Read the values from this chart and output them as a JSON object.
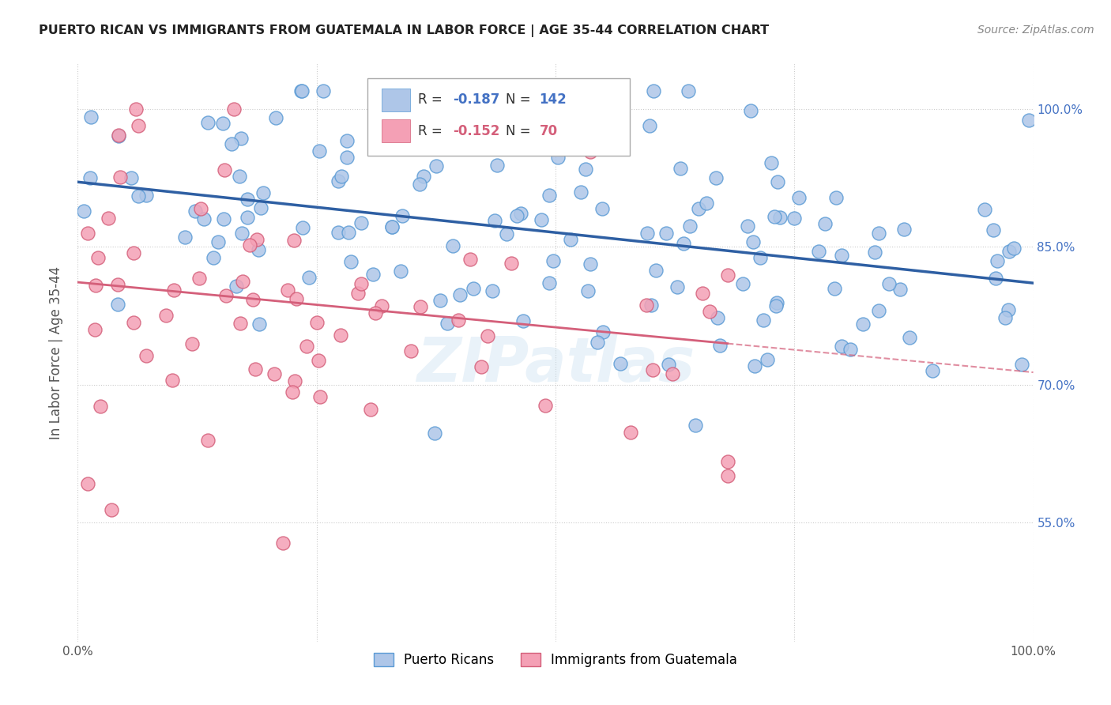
{
  "title": "PUERTO RICAN VS IMMIGRANTS FROM GUATEMALA IN LABOR FORCE | AGE 35-44 CORRELATION CHART",
  "source": "Source: ZipAtlas.com",
  "ylabel": "In Labor Force | Age 35-44",
  "xlim": [
    0.0,
    1.0
  ],
  "ylim": [
    0.42,
    1.05
  ],
  "yticks": [
    0.55,
    0.7,
    0.85,
    1.0
  ],
  "ytick_labels": [
    "55.0%",
    "70.0%",
    "85.0%",
    "100.0%"
  ],
  "blue_R": -0.187,
  "blue_N": 142,
  "pink_R": -0.152,
  "pink_N": 70,
  "legend_label_blue": "Puerto Ricans",
  "legend_label_pink": "Immigrants from Guatemala",
  "blue_color": "#aec6e8",
  "blue_edge": "#5b9bd5",
  "pink_color": "#f4a0b5",
  "pink_edge": "#d45f7a",
  "blue_line_color": "#2e5fa3",
  "pink_line_color": "#d45f7a",
  "watermark": "ZIPatlas",
  "background_color": "#ffffff",
  "grid_color": "#cccccc"
}
